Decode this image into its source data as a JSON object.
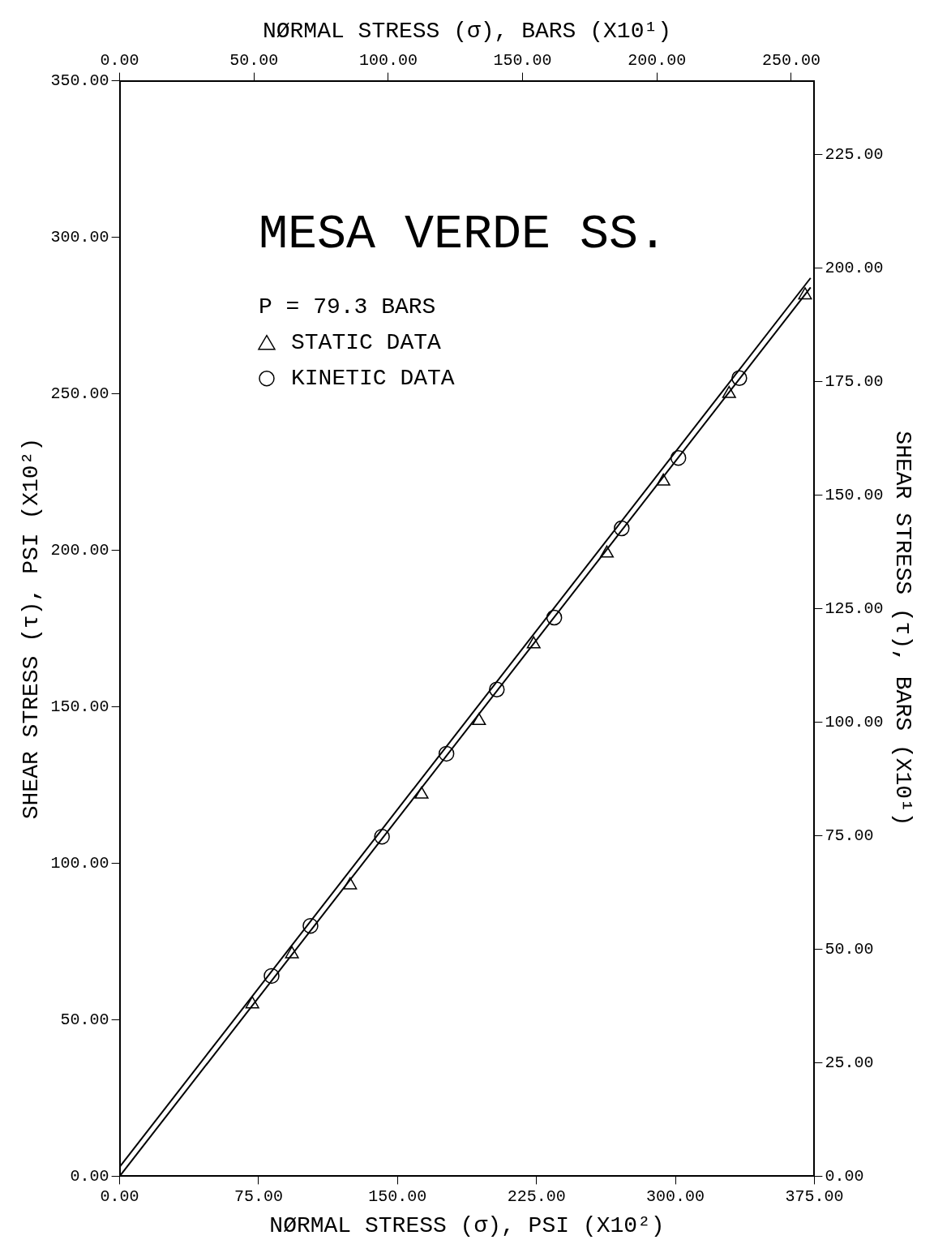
{
  "chart_data": {
    "type": "scatter",
    "title": "MESA VERDE SS.",
    "xlabel": "NØRMAL STRESS (σ), PSI (X10²)",
    "x2label": "NØRMAL STRESS (σ), BARS (X10¹)",
    "ylabel": "SHEAR STRESS (τ), PSI (X10²)",
    "y2label": "SHEAR STRESS (τ), BARS (X10¹)",
    "annotations": [
      "P = 79.3 BARS"
    ],
    "xlim": [
      0,
      375
    ],
    "xticks": [
      {
        "value": 0,
        "label": "0.00"
      },
      {
        "value": 75,
        "label": "75.00"
      },
      {
        "value": 150,
        "label": "150.00"
      },
      {
        "value": 225,
        "label": "225.00"
      },
      {
        "value": 300,
        "label": "300.00"
      },
      {
        "value": 375,
        "label": "375.00"
      }
    ],
    "x2lim": [
      0,
      258.6
    ],
    "x2ticks": [
      {
        "value": 0,
        "label": "0.00"
      },
      {
        "value": 50,
        "label": "50.00"
      },
      {
        "value": 100,
        "label": "100.00"
      },
      {
        "value": 150,
        "label": "150.00"
      },
      {
        "value": 200,
        "label": "200.00"
      },
      {
        "value": 250,
        "label": "250.00"
      }
    ],
    "ylim": [
      0,
      350
    ],
    "yticks": [
      {
        "value": 0,
        "label": "0.00"
      },
      {
        "value": 50,
        "label": "50.00"
      },
      {
        "value": 100,
        "label": "100.00"
      },
      {
        "value": 150,
        "label": "150.00"
      },
      {
        "value": 200,
        "label": "200.00"
      },
      {
        "value": 250,
        "label": "250.00"
      },
      {
        "value": 300,
        "label": "300.00"
      },
      {
        "value": 350,
        "label": "350.00"
      }
    ],
    "y2lim": [
      0,
      241.3
    ],
    "y2ticks": [
      {
        "value": 0,
        "label": "0.00"
      },
      {
        "value": 25,
        "label": "25.00"
      },
      {
        "value": 50,
        "label": "50.00"
      },
      {
        "value": 75,
        "label": "75.00"
      },
      {
        "value": 100,
        "label": "100.00"
      },
      {
        "value": 125,
        "label": "125.00"
      },
      {
        "value": 150,
        "label": "150.00"
      },
      {
        "value": 175,
        "label": "175.00"
      },
      {
        "value": 200,
        "label": "200.00"
      },
      {
        "value": 225,
        "label": "225.00"
      }
    ],
    "grid": false,
    "legend": "top left",
    "series": [
      {
        "name": "STATIC DATA",
        "marker": "triangle",
        "color": "#000000",
        "x": [
          71.6,
          93,
          124.4,
          163,
          194,
          223.5,
          263,
          293.5,
          329,
          370
        ],
        "values": [
          55,
          71,
          93,
          122,
          145.5,
          170,
          199,
          222,
          250,
          281.5
        ]
      },
      {
        "name": "KINETIC DATA",
        "marker": "circle",
        "color": "#000000",
        "x": [
          82,
          103,
          141.6,
          176.4,
          203.6,
          234.6,
          271,
          301.6,
          334.5
        ],
        "values": [
          64,
          80,
          108.5,
          135,
          155.5,
          178.5,
          207,
          229.5,
          255
        ]
      },
      {
        "type": "line",
        "marker": "none",
        "line_style": "solid",
        "color": "#000000",
        "x": [
          0,
          373
        ],
        "values": [
          3,
          287
        ]
      },
      {
        "type": "line",
        "marker": "none",
        "line_style": "solid",
        "color": "#000000",
        "x": [
          0,
          373
        ],
        "values": [
          0,
          284
        ]
      }
    ]
  }
}
